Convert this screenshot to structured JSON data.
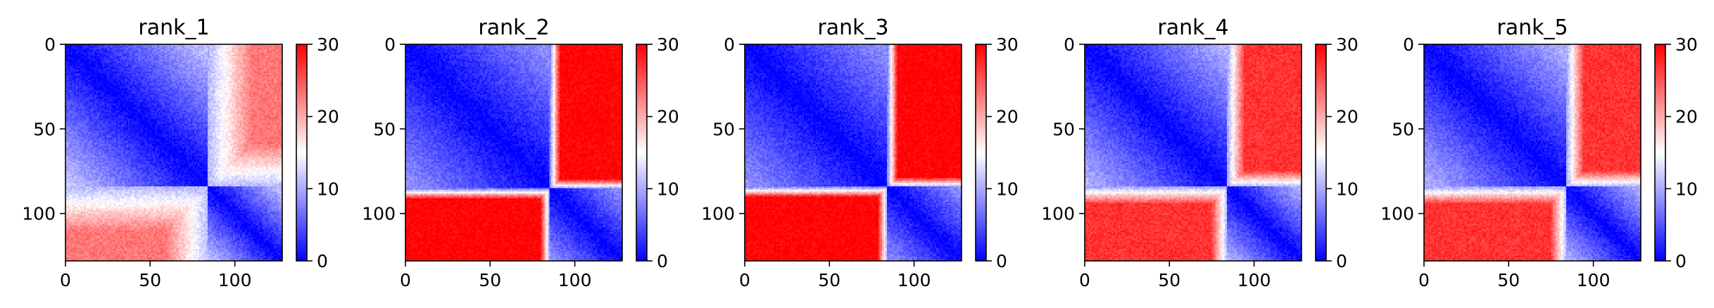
{
  "chart_data": [
    {
      "type": "heatmap",
      "title": "rank_1",
      "matrix_size": 128,
      "x_ticks": [
        "0",
        "50",
        "100"
      ],
      "y_ticks": [
        "0",
        "50",
        "100"
      ],
      "colorbar": {
        "min": 0,
        "max": 30,
        "ticks": [
          "0",
          "10",
          "20",
          "30"
        ],
        "colormap": "bwr"
      },
      "blocks": [
        {
          "start": 0,
          "end": 84
        },
        {
          "start": 84,
          "end": 128
        }
      ],
      "within_block_max": 12,
      "off_block_value": 23,
      "edge_width": 26
    },
    {
      "type": "heatmap",
      "title": "rank_2",
      "matrix_size": 128,
      "x_ticks": [
        "0",
        "50",
        "100"
      ],
      "y_ticks": [
        "0",
        "50",
        "100"
      ],
      "colorbar": {
        "min": 0,
        "max": 30,
        "ticks": [
          "0",
          "10",
          "20",
          "30"
        ],
        "colormap": "bwr"
      },
      "blocks": [
        {
          "start": 0,
          "end": 85
        },
        {
          "start": 85,
          "end": 128
        }
      ],
      "within_block_max": 9,
      "off_block_value": 30,
      "edge_width": 6
    },
    {
      "type": "heatmap",
      "title": "rank_3",
      "matrix_size": 128,
      "x_ticks": [
        "0",
        "50",
        "100"
      ],
      "y_ticks": [
        "0",
        "50",
        "100"
      ],
      "colorbar": {
        "min": 0,
        "max": 30,
        "ticks": [
          "0",
          "10",
          "20",
          "30"
        ],
        "colormap": "bwr"
      },
      "blocks": [
        {
          "start": 0,
          "end": 84
        },
        {
          "start": 84,
          "end": 128
        }
      ],
      "within_block_max": 9,
      "off_block_value": 30,
      "edge_width": 6
    },
    {
      "type": "heatmap",
      "title": "rank_4",
      "matrix_size": 128,
      "x_ticks": [
        "0",
        "50",
        "100"
      ],
      "y_ticks": [
        "0",
        "50",
        "100"
      ],
      "colorbar": {
        "min": 0,
        "max": 30,
        "ticks": [
          "0",
          "10",
          "20",
          "30"
        ],
        "colormap": "bwr"
      },
      "blocks": [
        {
          "start": 0,
          "end": 84
        },
        {
          "start": 84,
          "end": 128
        }
      ],
      "within_block_max": 11,
      "off_block_value": 27,
      "edge_width": 10
    },
    {
      "type": "heatmap",
      "title": "rank_5",
      "matrix_size": 128,
      "x_ticks": [
        "0",
        "50",
        "100"
      ],
      "y_ticks": [
        "0",
        "50",
        "100"
      ],
      "colorbar": {
        "min": 0,
        "max": 30,
        "ticks": [
          "0",
          "10",
          "20",
          "30"
        ],
        "colormap": "bwr"
      },
      "blocks": [
        {
          "start": 0,
          "end": 84
        },
        {
          "start": 84,
          "end": 128
        }
      ],
      "within_block_max": 11,
      "off_block_value": 27,
      "edge_width": 10
    }
  ]
}
